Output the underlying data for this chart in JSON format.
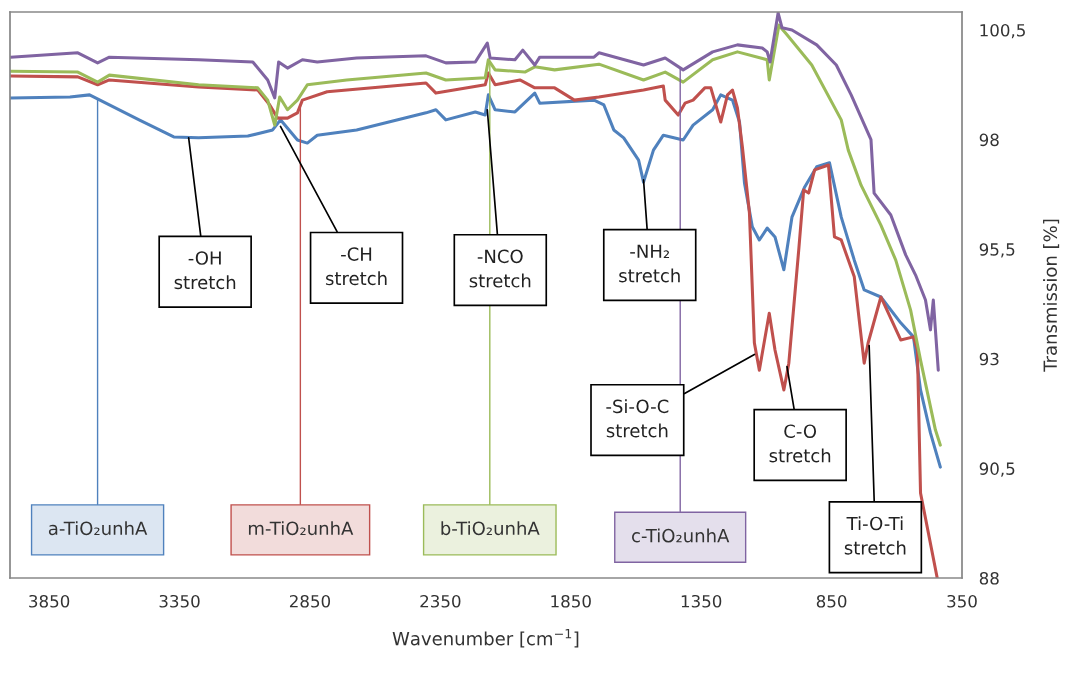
{
  "chart_data": {
    "type": "line",
    "xlabel": "Wavenumber [cm$^{−1}$]",
    "ylabel": "Transmission [%]",
    "xlim": [
      4000,
      350
    ],
    "ylim": [
      88,
      100.91
    ],
    "xticks": [
      3850,
      3350,
      2850,
      2350,
      1850,
      1350,
      850,
      350
    ],
    "yticks": [
      {
        "value": 100.5,
        "label": "100,5"
      },
      98,
      {
        "value": 95.5,
        "label": "95,5"
      },
      93,
      {
        "value": 90.5,
        "label": "90,5"
      },
      88
    ],
    "grid": false,
    "legend": false,
    "marker": "none",
    "line_style": "solid",
    "series": [
      {
        "name": "a-TiO₂unhA",
        "color": "#4f81bd",
        "x": [
          3998,
          3770,
          3695,
          3619,
          3505,
          3372,
          3277,
          3088,
          2993,
          2963,
          2898,
          2860,
          2822,
          2671,
          2405,
          2367,
          2329,
          2216,
          2178,
          2166,
          2140,
          2064,
          1988,
          1969,
          1761,
          1723,
          1685,
          1647,
          1590,
          1571,
          1533,
          1495,
          1419,
          1381,
          1306,
          1275,
          1230,
          1203,
          1184,
          1154,
          1127,
          1097,
          1067,
          1033,
          1002,
          953,
          907,
          858,
          813,
          763,
          725,
          661,
          585,
          536,
          509,
          471,
          433
        ],
        "values": [
          98.95,
          98.97,
          99.02,
          98.79,
          98.45,
          98.06,
          98.04,
          98.08,
          98.22,
          98.45,
          97.99,
          97.92,
          98.1,
          98.22,
          98.61,
          98.68,
          98.45,
          98.63,
          98.56,
          99.02,
          98.68,
          98.63,
          99.06,
          98.83,
          98.9,
          98.79,
          98.22,
          98.04,
          97.53,
          97.03,
          97.76,
          98.1,
          97.99,
          98.33,
          98.68,
          99.02,
          98.9,
          98.4,
          97.01,
          96.01,
          95.71,
          95.98,
          95.78,
          95.03,
          96.23,
          96.92,
          97.38,
          97.47,
          96.23,
          95.25,
          94.57,
          94.41,
          93.82,
          93.5,
          92.29,
          91.31,
          90.53
        ]
      },
      {
        "name": "m-TiO₂unhA",
        "color": "#c0504d",
        "x": [
          3998,
          3740,
          3664,
          3619,
          3277,
          3050,
          3004,
          2974,
          2936,
          2898,
          2879,
          2784,
          2405,
          2367,
          2178,
          2166,
          2140,
          2045,
          1988,
          1912,
          1836,
          1742,
          1571,
          1495,
          1488,
          1438,
          1412,
          1381,
          1336,
          1313,
          1275,
          1249,
          1230,
          1211,
          1192,
          1165,
          1146,
          1127,
          1089,
          1067,
          1033,
          1014,
          976,
          957,
          938,
          915,
          862,
          839,
          813,
          763,
          725,
          710,
          661,
          585,
          536,
          521,
          509,
          445
        ],
        "values": [
          99.45,
          99.43,
          99.25,
          99.36,
          99.2,
          99.13,
          98.79,
          98.49,
          98.49,
          98.61,
          98.9,
          99.09,
          99.29,
          99.06,
          99.25,
          99.52,
          99.25,
          99.36,
          99.18,
          99.18,
          98.9,
          98.97,
          99.13,
          99.22,
          98.9,
          98.56,
          98.83,
          98.9,
          99.18,
          99.18,
          98.4,
          99.02,
          99.13,
          98.72,
          97.83,
          96.33,
          93.36,
          92.74,
          94.04,
          93.2,
          92.29,
          92.9,
          95.48,
          96.85,
          96.78,
          97.31,
          97.42,
          95.78,
          95.71,
          94.87,
          92.9,
          93.36,
          94.41,
          93.43,
          93.5,
          93.2,
          89.94,
          88.0
        ]
      },
      {
        "name": "b-TiO₂unhA",
        "color": "#9bbb59",
        "x": [
          3998,
          3740,
          3664,
          3619,
          3277,
          3050,
          3012,
          2985,
          2966,
          2936,
          2898,
          2860,
          2709,
          2405,
          2329,
          2178,
          2166,
          2140,
          2026,
          1988,
          1912,
          1742,
          1571,
          1488,
          1419,
          1306,
          1211,
          1097,
          1089,
          1052,
          1021,
          926,
          813,
          786,
          737,
          661,
          604,
          547,
          509,
          452,
          433
        ],
        "values": [
          99.56,
          99.54,
          99.31,
          99.47,
          99.25,
          99.18,
          98.9,
          98.33,
          98.97,
          98.68,
          98.9,
          99.25,
          99.36,
          99.52,
          99.36,
          99.41,
          99.82,
          99.59,
          99.54,
          99.66,
          99.59,
          99.72,
          99.36,
          99.54,
          99.31,
          99.82,
          100.0,
          99.82,
          99.36,
          100.61,
          100.39,
          99.7,
          98.45,
          97.76,
          96.96,
          96.05,
          95.25,
          94.11,
          92.97,
          91.38,
          91.03
        ]
      },
      {
        "name": "c-TiO₂unhA",
        "color": "#8064a2",
        "x": [
          3998,
          3740,
          3664,
          3619,
          3277,
          3069,
          3012,
          2985,
          2970,
          2936,
          2879,
          2822,
          2671,
          2405,
          2329,
          2216,
          2170,
          2159,
          2064,
          2034,
          1988,
          1969,
          1761,
          1742,
          1571,
          1488,
          1419,
          1306,
          1211,
          1116,
          1097,
          1086,
          1055,
          1040,
          1002,
          907,
          832,
          775,
          699,
          687,
          623,
          566,
          528,
          490,
          471,
          460,
          441
        ],
        "values": [
          99.88,
          99.98,
          99.75,
          99.88,
          99.82,
          99.77,
          99.36,
          98.95,
          99.77,
          99.63,
          99.82,
          99.77,
          99.86,
          99.91,
          99.75,
          99.77,
          100.2,
          99.86,
          99.82,
          100.04,
          99.7,
          99.88,
          99.88,
          99.98,
          99.7,
          99.86,
          99.59,
          100.0,
          100.16,
          100.09,
          100.0,
          99.77,
          100.89,
          100.55,
          100.5,
          100.16,
          99.7,
          99.02,
          98.0,
          96.78,
          96.28,
          95.37,
          94.91,
          94.34,
          93.66,
          94.34,
          92.74
        ]
      }
    ],
    "annotations": [
      {
        "text": "-OH\nstretch",
        "x": 3315,
        "y": 98.04
      },
      {
        "text": "-CH\nstretch",
        "x": 2963,
        "y": 98.3
      },
      {
        "text": "-NCO\nstretch",
        "x": 2170,
        "y": 98.68
      },
      {
        "text": "-NH₂\nstretch",
        "x": 1571,
        "y": 97.08
      },
      {
        "text": "-Si-O-C\nstretch",
        "x": 1146,
        "y": 93.1
      },
      {
        "text": "C-O\nstretch",
        "x": 1021,
        "y": 92.82
      },
      {
        "text": "Ti-O-Ti\nstretch",
        "x": 706,
        "y": 93.3
      }
    ]
  }
}
